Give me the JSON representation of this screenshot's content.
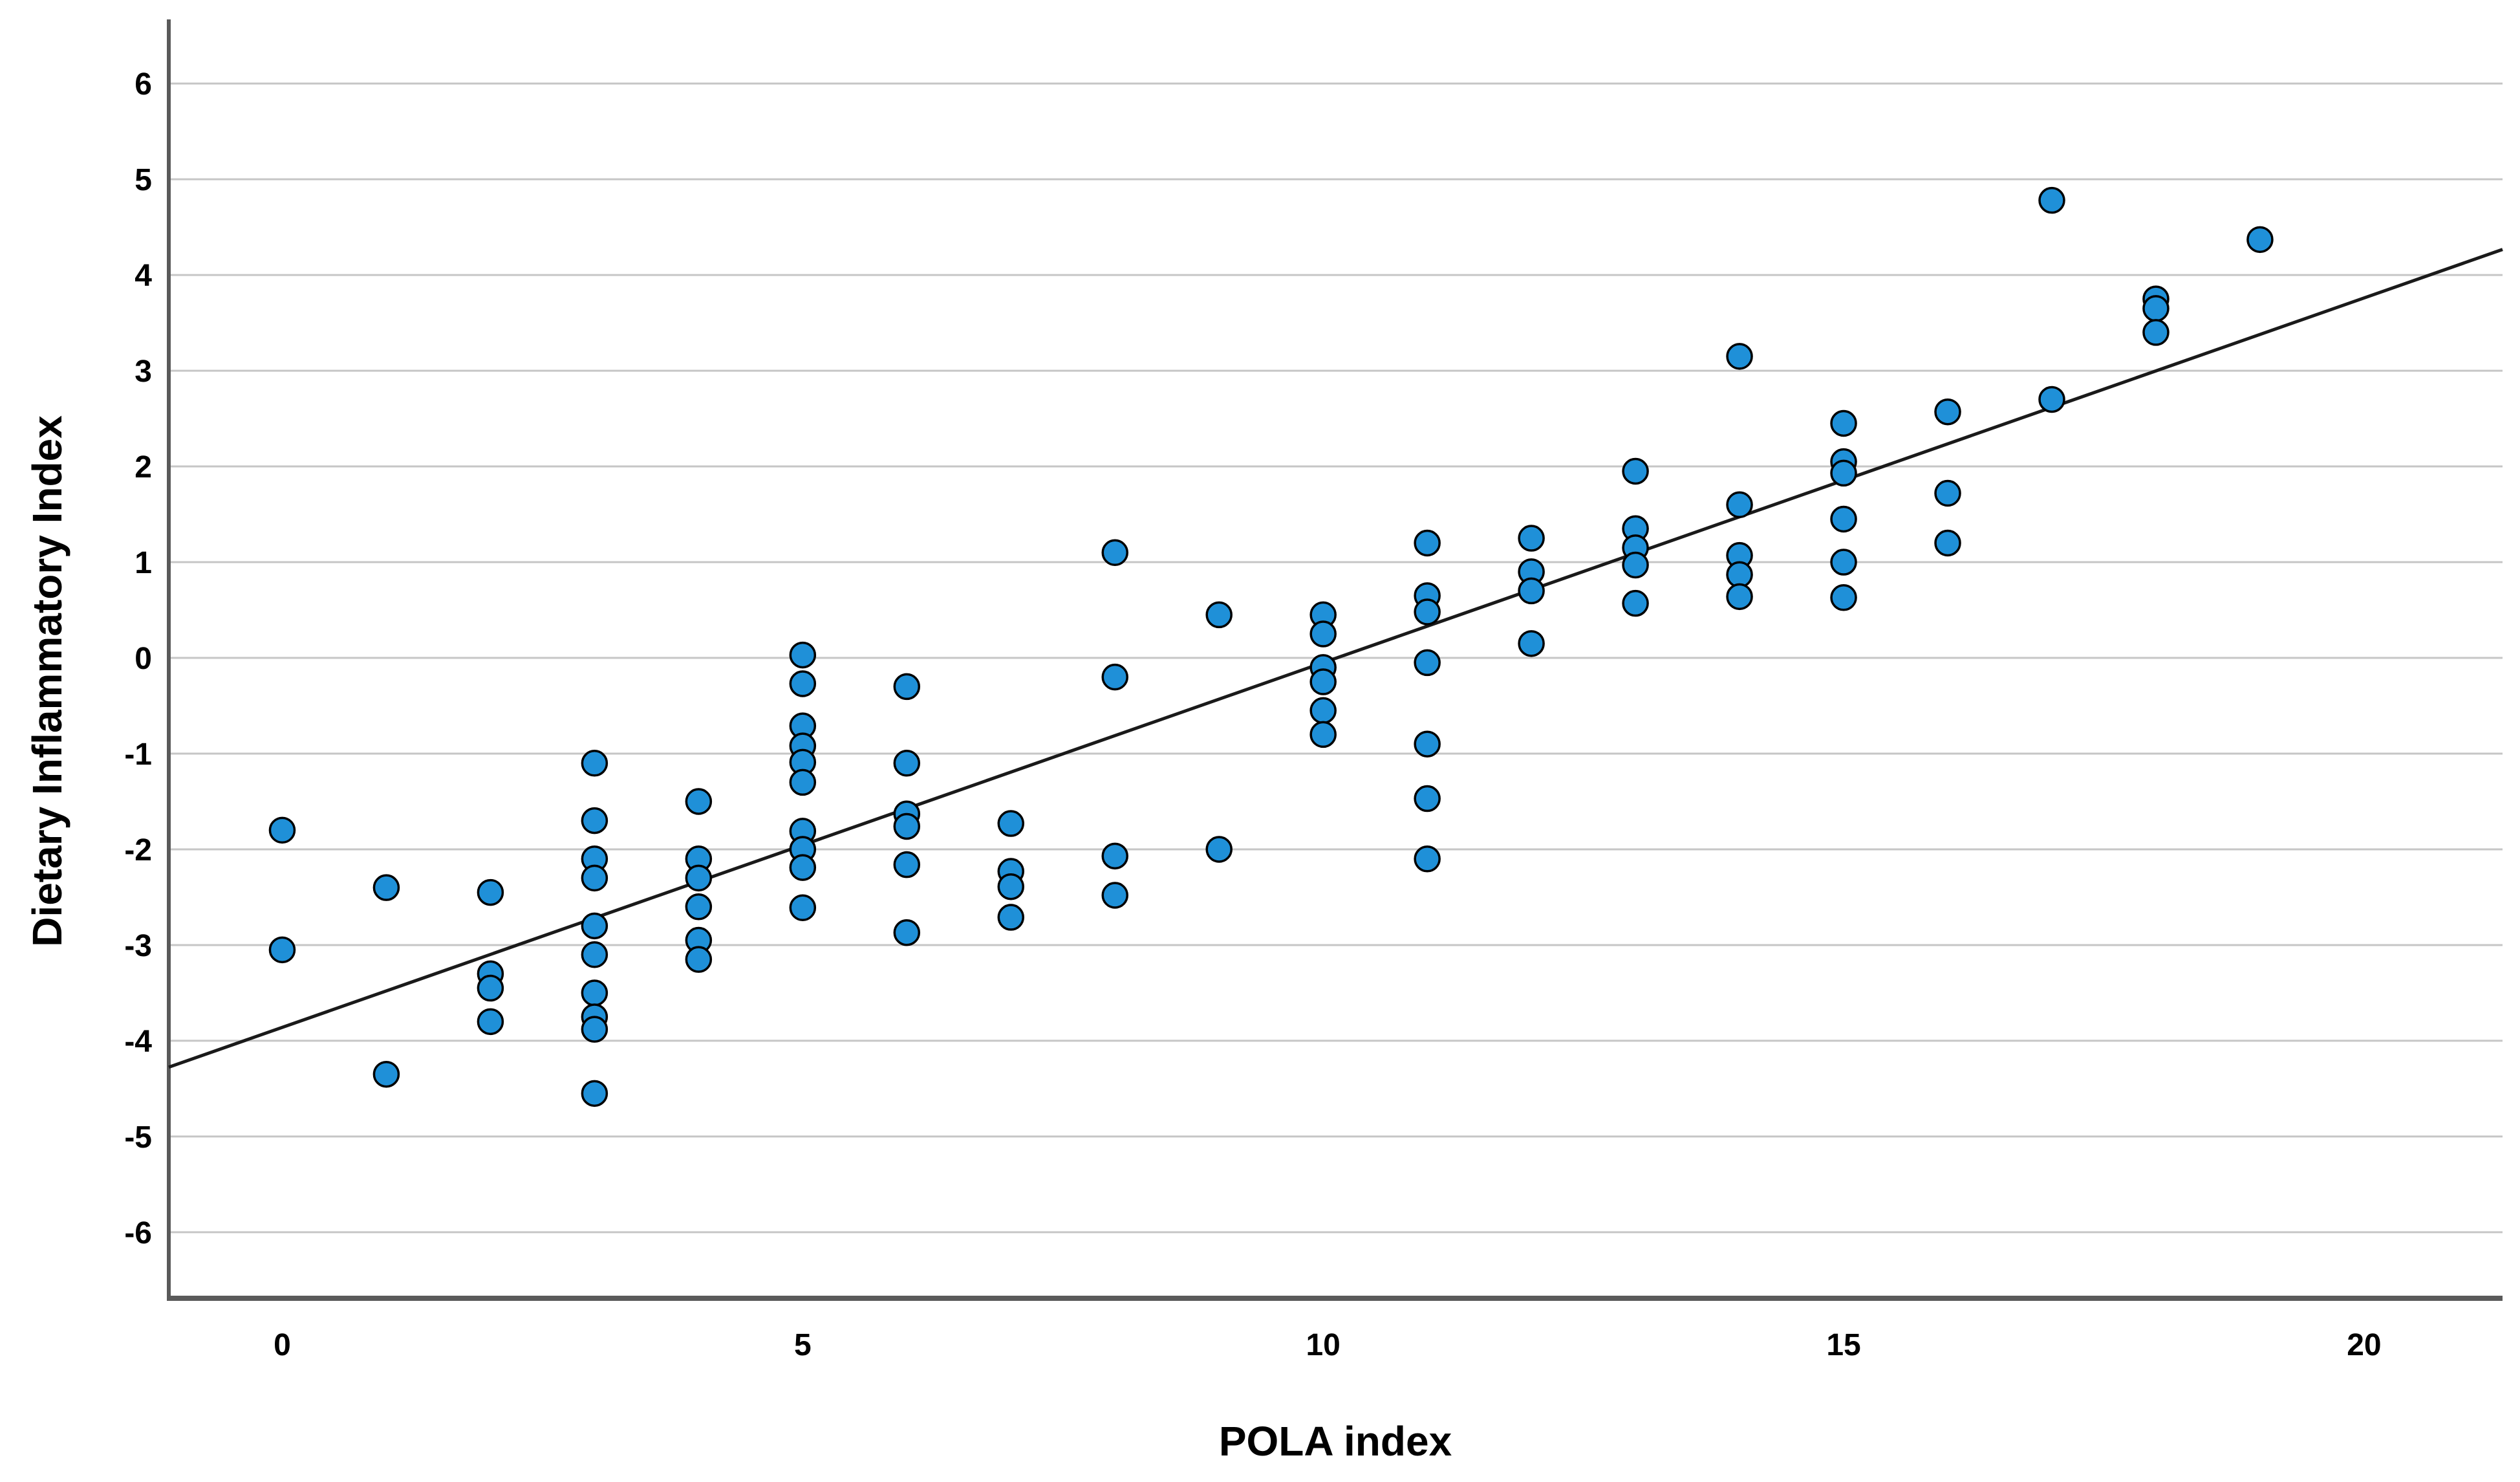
{
  "chart_data": {
    "type": "scatter",
    "title": "",
    "xlabel": "POLA index",
    "ylabel": "Dietary Inflammatory Index",
    "x_ticks": [
      0,
      5,
      10,
      15,
      20
    ],
    "y_ticks": [
      6,
      5,
      4,
      3,
      2,
      1,
      0,
      -1,
      -2,
      -3,
      -4,
      -5,
      -6
    ],
    "xlim": [
      -1.09,
      21.33
    ],
    "ylim": [
      -6.69,
      6.67
    ],
    "grid": "horizontal-only",
    "legend": "none",
    "colors": {
      "point_fill": "#1f90d8",
      "point_stroke": "#000000",
      "gridline": "#c6c6c6",
      "axis_line": "#5a5a5a",
      "fit_line": "#1a1a1a"
    },
    "fit_line": {
      "slope": 0.381,
      "intercept": -3.86,
      "x_start": -1.09,
      "x_end": 21.33
    },
    "points": [
      [
        0,
        -1.8
      ],
      [
        0,
        -3.05
      ],
      [
        1,
        -2.4
      ],
      [
        1,
        -4.35
      ],
      [
        2,
        -2.45
      ],
      [
        2,
        -3.3
      ],
      [
        2,
        -3.45
      ],
      [
        2,
        -3.8
      ],
      [
        3,
        -1.1
      ],
      [
        3,
        -1.7
      ],
      [
        3,
        -2.1
      ],
      [
        3,
        -2.3
      ],
      [
        3,
        -2.8
      ],
      [
        3,
        -3.1
      ],
      [
        3,
        -3.5
      ],
      [
        3,
        -3.75
      ],
      [
        3,
        -3.88
      ],
      [
        3,
        -4.55
      ],
      [
        4,
        -1.5
      ],
      [
        4,
        -2.1
      ],
      [
        4,
        -2.3
      ],
      [
        4,
        -2.6
      ],
      [
        4,
        -2.95
      ],
      [
        4,
        -3.15
      ],
      [
        5,
        0.03
      ],
      [
        5,
        -0.27
      ],
      [
        5,
        -0.71
      ],
      [
        5,
        -0.92
      ],
      [
        5,
        -1.09
      ],
      [
        5,
        -1.3
      ],
      [
        5,
        -1.81
      ],
      [
        5,
        -2.0
      ],
      [
        5,
        -2.19
      ],
      [
        5,
        -2.61
      ],
      [
        6,
        -0.3
      ],
      [
        6,
        -1.1
      ],
      [
        6,
        -1.63
      ],
      [
        6,
        -1.76
      ],
      [
        6,
        -2.16
      ],
      [
        6,
        -2.87
      ],
      [
        7,
        -1.73
      ],
      [
        7,
        -2.23
      ],
      [
        7,
        -2.39
      ],
      [
        7,
        -2.71
      ],
      [
        8,
        1.1
      ],
      [
        8,
        -0.2
      ],
      [
        8,
        -2.07
      ],
      [
        8,
        -2.48
      ],
      [
        9,
        0.45
      ],
      [
        9,
        -2.0
      ],
      [
        10,
        0.45
      ],
      [
        10,
        0.25
      ],
      [
        10,
        -0.1
      ],
      [
        10,
        -0.25
      ],
      [
        10,
        -0.55
      ],
      [
        10,
        -0.8
      ],
      [
        11,
        1.2
      ],
      [
        11,
        0.65
      ],
      [
        11,
        0.48
      ],
      [
        11,
        -0.05
      ],
      [
        11,
        -0.9
      ],
      [
        11,
        -1.47
      ],
      [
        11,
        -2.1
      ],
      [
        12,
        1.25
      ],
      [
        12,
        0.9
      ],
      [
        12,
        0.7
      ],
      [
        12,
        0.15
      ],
      [
        13,
        1.95
      ],
      [
        13,
        1.35
      ],
      [
        13,
        1.15
      ],
      [
        13,
        0.97
      ],
      [
        13,
        0.57
      ],
      [
        14,
        3.15
      ],
      [
        14,
        1.6
      ],
      [
        14,
        1.07
      ],
      [
        14,
        0.87
      ],
      [
        14,
        0.64
      ],
      [
        15,
        2.45
      ],
      [
        15,
        2.05
      ],
      [
        15,
        1.93
      ],
      [
        15,
        1.45
      ],
      [
        15,
        1.0
      ],
      [
        15,
        0.63
      ],
      [
        16,
        2.57
      ],
      [
        16,
        1.72
      ],
      [
        16,
        1.2
      ],
      [
        17,
        4.78
      ],
      [
        17,
        2.7
      ],
      [
        18,
        3.75
      ],
      [
        18,
        3.65
      ],
      [
        18,
        3.4
      ],
      [
        19,
        4.37
      ]
    ]
  }
}
